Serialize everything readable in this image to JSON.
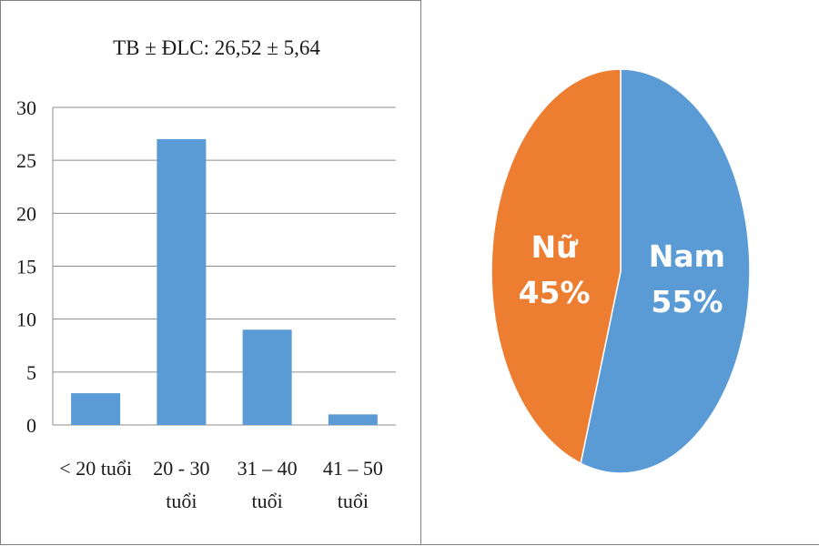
{
  "chart_data": [
    {
      "type": "bar",
      "title": "TB ± ĐLC: 26,52 ± 5,64",
      "categories": [
        [
          "< 20 tuổi"
        ],
        [
          "20 - 30",
          "tuổi"
        ],
        [
          "31 – 40",
          "tuổi"
        ],
        [
          "41 – 50",
          "tuổi"
        ]
      ],
      "values": [
        3,
        27,
        9,
        1
      ],
      "ylim": [
        0,
        30
      ],
      "yticks": [
        0,
        5,
        10,
        15,
        20,
        25,
        30
      ],
      "grid": true,
      "color": "#5b9bd5"
    },
    {
      "type": "pie",
      "slices": [
        {
          "label": "Nam",
          "percent_label": "55%",
          "value": 55,
          "color": "#5b9bd5"
        },
        {
          "label": "Nữ",
          "percent_label": "45%",
          "value": 45,
          "color": "#ed7d31"
        }
      ],
      "border_color": "#ffffff"
    }
  ]
}
